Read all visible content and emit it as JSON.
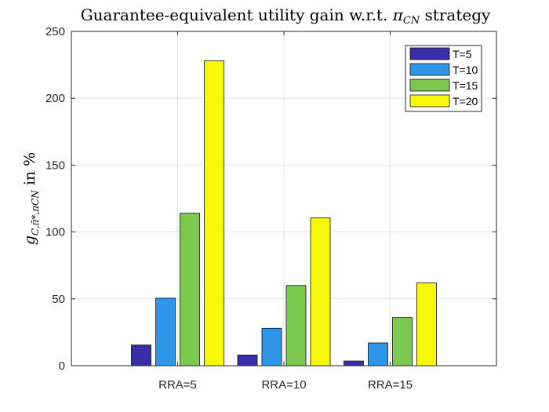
{
  "chart_data": {
    "type": "bar",
    "title_main": "Guarantee-equivalent utility gain w.r.t. ",
    "title_pi": "π",
    "title_sub": "CN",
    "title_tail": " strategy",
    "ylabel_g": "g",
    "ylabel_sub": "C,π̄*,πCN",
    "ylabel_tail": " in %",
    "xlabel": "",
    "categories": [
      "RRA=5",
      "RRA=10",
      "RRA=15"
    ],
    "ylim": [
      0,
      250
    ],
    "yticks": [
      0,
      50,
      100,
      150,
      200,
      250
    ],
    "grid": true,
    "legend_position": "top-right",
    "series": [
      {
        "name": "T=5",
        "color": "#3a2ea8",
        "values": [
          15.5,
          8,
          3.5
        ]
      },
      {
        "name": "T=10",
        "color": "#2d96e8",
        "values": [
          50.5,
          28,
          17
        ]
      },
      {
        "name": "T=15",
        "color": "#7cc94f",
        "values": [
          114,
          60,
          36
        ]
      },
      {
        "name": "T=20",
        "color": "#f7f70a",
        "values": [
          228,
          110.5,
          62
        ]
      }
    ]
  }
}
